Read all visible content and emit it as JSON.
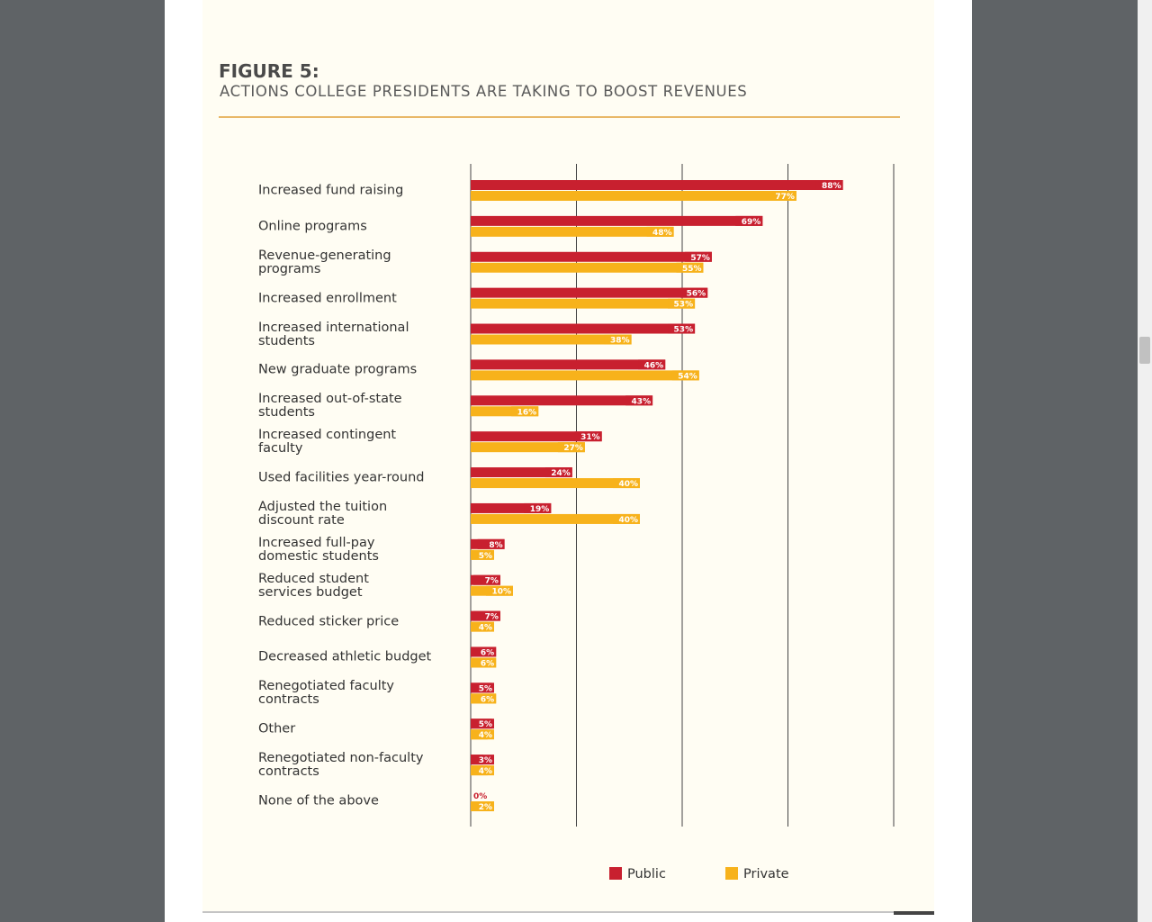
{
  "chart_data": {
    "type": "barh",
    "title": "FIGURE 5:",
    "subtitle": "ACTIONS COLLEGE PRESIDENTS ARE TAKING TO BOOST REVENUES",
    "categories": [
      "Increased fund raising",
      "Online programs",
      "Revenue-generating\nprograms",
      "Increased enrollment",
      "Increased international\nstudents",
      "New graduate programs",
      "Increased out-of-state\nstudents",
      "Increased contingent\nfaculty",
      "Used facilities year-round",
      "Adjusted the tuition\ndiscount rate",
      "Increased full-pay\ndomestic students",
      "Reduced student\nservices budget",
      "Reduced sticker price",
      "Decreased athletic budget",
      "Renegotiated faculty\ncontracts",
      "Other",
      "Renegotiated non-faculty\ncontracts",
      "None of the above"
    ],
    "series": [
      {
        "name": "Public",
        "color": "#c8202f",
        "values": [
          88,
          69,
          57,
          56,
          53,
          46,
          43,
          31,
          24,
          19,
          8,
          7,
          7,
          6,
          5,
          5,
          3,
          0
        ],
        "value_labels": [
          "88%",
          "69%",
          "57%",
          "56%",
          "53%",
          "46%",
          "43%",
          "31%",
          "24%",
          "19%",
          "8%",
          "7%",
          "7%",
          "6%",
          "5%",
          "5%",
          "3%",
          "0%"
        ]
      },
      {
        "name": "Private",
        "color": "#f7b21b",
        "values": [
          77,
          48,
          55,
          53,
          38,
          54,
          16,
          27,
          40,
          40,
          5,
          10,
          4,
          6,
          6,
          4,
          4,
          2
        ],
        "value_labels": [
          "77%",
          "48%",
          "55%",
          "53%",
          "38%",
          "54%",
          "16%",
          "27%",
          "40%",
          "40%",
          "5%",
          "10%",
          "4%",
          "6%",
          "6%",
          "4%",
          "4%",
          "2%"
        ]
      }
    ],
    "xlim": [
      0,
      100
    ],
    "xticks": [
      0,
      25,
      50,
      75,
      100
    ],
    "grid": true
  }
}
